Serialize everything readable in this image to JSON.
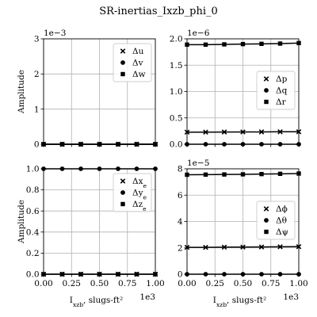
{
  "figure": {
    "title": "SR-inertias_Ixzb_phi_0"
  },
  "chart_data": [
    {
      "id": "translational-velocity",
      "type": "line",
      "ylabel": "Amplitude",
      "xlabel": "",
      "exponent": "1e−3",
      "x_exponent": "",
      "xlim": [
        0,
        1000
      ],
      "ylim": [
        0,
        0.003
      ],
      "yticks": [
        0,
        0.001,
        0.002,
        0.003
      ],
      "yticklabels": [
        "0",
        "1",
        "2",
        "3"
      ],
      "xticks": [
        0,
        250,
        500,
        750,
        1000
      ],
      "xticklabels": [],
      "x": [
        0,
        166.67,
        333.33,
        500,
        666.67,
        833.33,
        1000
      ],
      "legend_position": "top-right",
      "series": [
        {
          "name": "Δu",
          "marker": "x",
          "values": [
            0,
            0,
            0,
            0,
            0,
            0,
            0
          ]
        },
        {
          "name": "Δv",
          "marker": "o",
          "values": [
            0,
            0,
            0,
            0,
            0,
            0,
            0
          ]
        },
        {
          "name": "Δw",
          "marker": "s",
          "values": [
            0,
            0,
            0,
            0,
            0,
            0,
            0
          ]
        }
      ]
    },
    {
      "id": "angular-rate",
      "type": "line",
      "ylabel": "",
      "xlabel": "",
      "exponent": "1e−6",
      "x_exponent": "",
      "xlim": [
        0,
        1000
      ],
      "ylim": [
        0,
        2e-06
      ],
      "yticks": [
        0,
        5e-07,
        1e-06,
        1.5e-06,
        2e-06
      ],
      "yticklabels": [
        "0.0",
        "0.5",
        "1.0",
        "1.5",
        "2.0"
      ],
      "xticks": [
        0,
        250,
        500,
        750,
        1000
      ],
      "xticklabels": [],
      "x": [
        0,
        166.67,
        333.33,
        500,
        666.67,
        833.33,
        1000
      ],
      "legend_position": "center-right",
      "series": [
        {
          "name": "Δp",
          "marker": "x",
          "values": [
            2.3e-07,
            2.3e-07,
            2.32e-07,
            2.33e-07,
            2.34e-07,
            2.36e-07,
            2.37e-07
          ]
        },
        {
          "name": "Δq",
          "marker": "o",
          "values": [
            0,
            0,
            0,
            0,
            0,
            0,
            0
          ]
        },
        {
          "name": "Δr",
          "marker": "s",
          "values": [
            1.89e-06,
            1.89e-06,
            1.895e-06,
            1.9e-06,
            1.905e-06,
            1.91e-06,
            1.92e-06
          ]
        }
      ]
    },
    {
      "id": "position",
      "type": "line",
      "ylabel": "Amplitude",
      "xlabel": "I_xz_b, slugs-ft²",
      "exponent": "",
      "x_exponent": "1e3",
      "xlim": [
        0,
        1000
      ],
      "ylim": [
        0,
        1.0
      ],
      "yticks": [
        0,
        0.2,
        0.4,
        0.6,
        0.8,
        1.0
      ],
      "yticklabels": [
        "0.0",
        "0.2",
        "0.4",
        "0.6",
        "0.8",
        "1.0"
      ],
      "xticks": [
        0,
        250,
        500,
        750,
        1000
      ],
      "xticklabels": [
        "0.00",
        "0.25",
        "0.50",
        "0.75",
        "1.00"
      ],
      "x": [
        0,
        166.67,
        333.33,
        500,
        666.67,
        833.33,
        1000
      ],
      "legend_position": "top-right",
      "series": [
        {
          "name": "Δx_e",
          "marker": "x",
          "values": [
            0,
            0,
            0,
            0,
            0,
            0,
            0
          ]
        },
        {
          "name": "Δy_e",
          "marker": "o",
          "values": [
            1,
            1,
            1,
            1,
            1,
            1,
            1
          ]
        },
        {
          "name": "Δz_e",
          "marker": "s",
          "values": [
            0,
            0,
            0,
            0,
            0,
            0,
            0
          ]
        }
      ]
    },
    {
      "id": "attitude",
      "type": "line",
      "ylabel": "",
      "xlabel": "I_xz_b, slugs-ft²",
      "exponent": "1e−5",
      "x_exponent": "1e3",
      "xlim": [
        0,
        1000
      ],
      "ylim": [
        0,
        8e-05
      ],
      "yticks": [
        0,
        2e-05,
        4e-05,
        6e-05,
        8e-05
      ],
      "yticklabels": [
        "0",
        "2",
        "4",
        "6",
        "8"
      ],
      "xticks": [
        0,
        250,
        500,
        750,
        1000
      ],
      "xticklabels": [
        "0.00",
        "0.25",
        "0.50",
        "0.75",
        "1.00"
      ],
      "x": [
        0,
        166.67,
        333.33,
        500,
        666.67,
        833.33,
        1000
      ],
      "legend_position": "center-right",
      "series": [
        {
          "name": "Δϕ",
          "marker": "x",
          "values": [
            2.04e-05,
            2.04e-05,
            2.05e-05,
            2.06e-05,
            2.07e-05,
            2.08e-05,
            2.09e-05
          ]
        },
        {
          "name": "Δθ",
          "marker": "o",
          "values": [
            0,
            0,
            0,
            0,
            0,
            0,
            0
          ]
        },
        {
          "name": "Δψ",
          "marker": "s",
          "values": [
            7.55e-05,
            7.56e-05,
            7.57e-05,
            7.58e-05,
            7.6e-05,
            7.62e-05,
            7.64e-05
          ]
        }
      ]
    }
  ]
}
